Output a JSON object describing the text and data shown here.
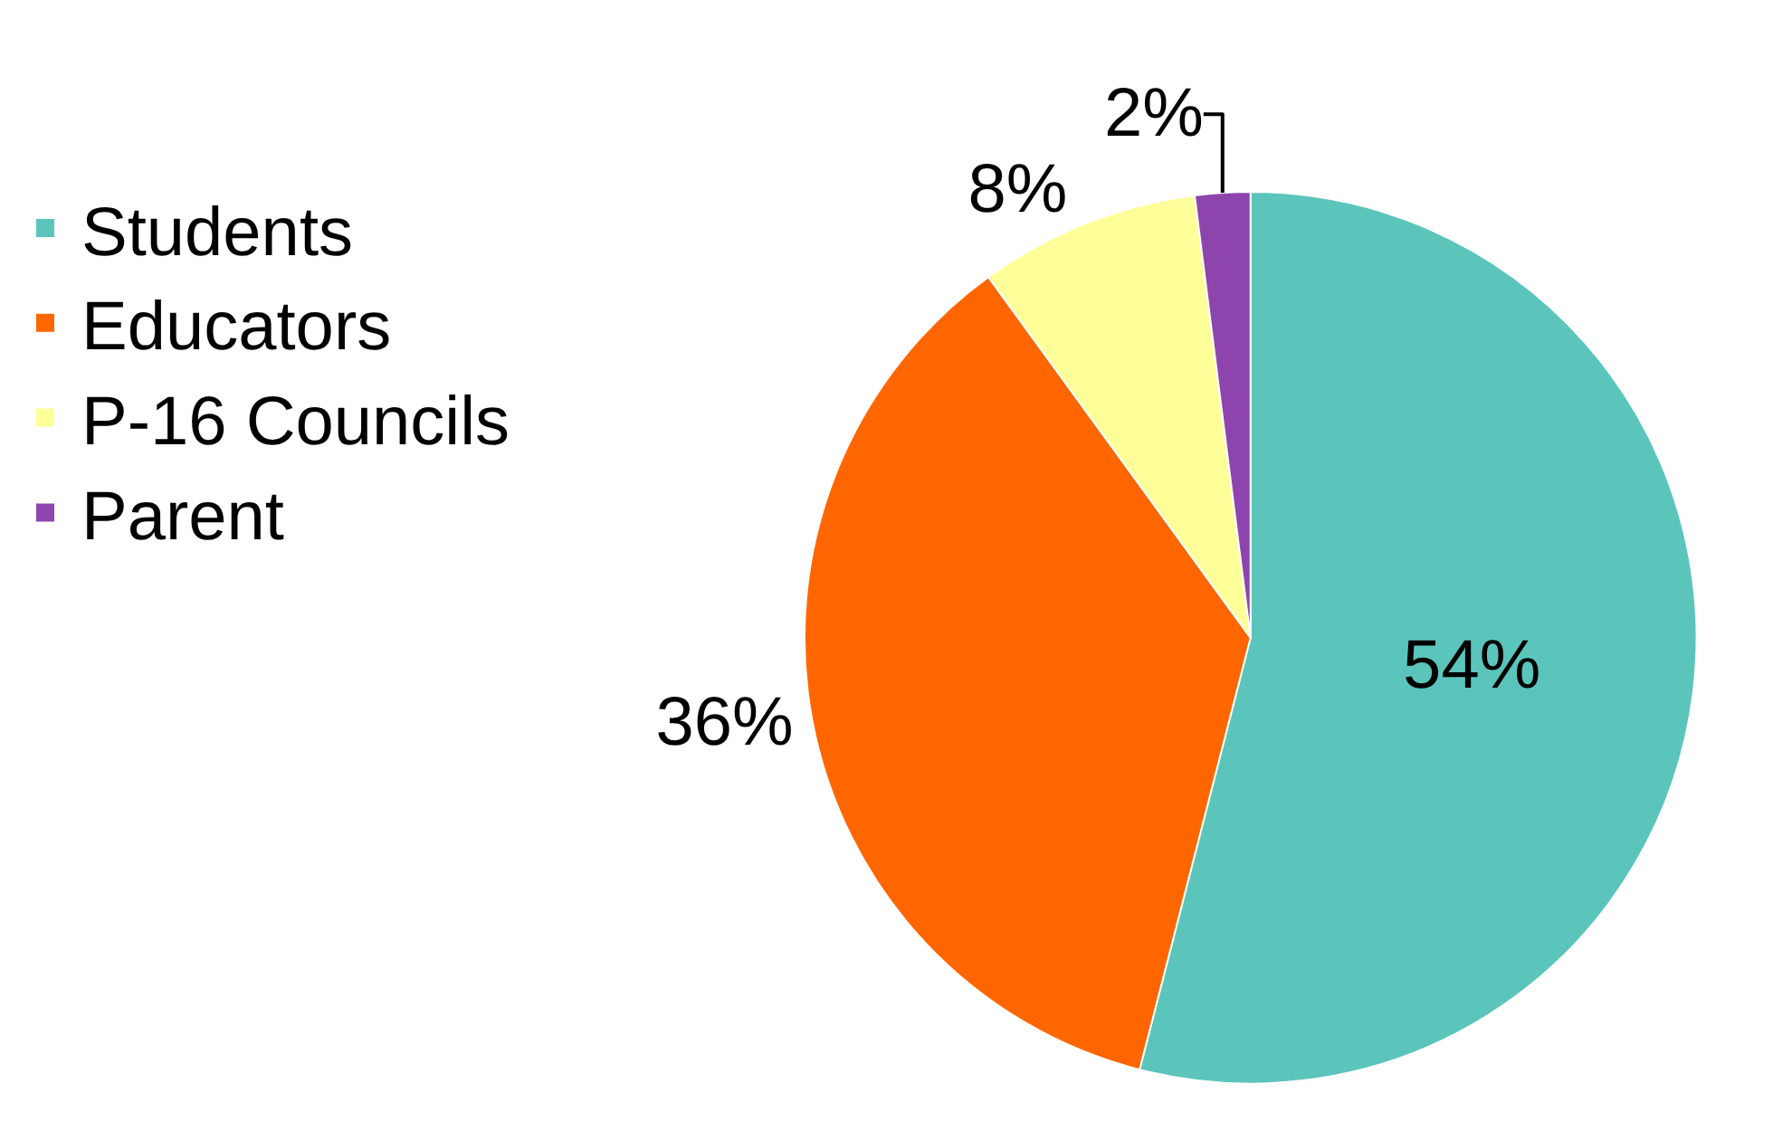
{
  "chart_data": {
    "type": "pie",
    "categories": [
      "Students",
      "Educators",
      "P-16 Councils",
      "Parent"
    ],
    "values": [
      54,
      36,
      8,
      2
    ],
    "colors": [
      "#5bc5bc",
      "#ff6600",
      "#ffff99",
      "#8e44ad"
    ],
    "value_labels": [
      "54%",
      "36%",
      "8%",
      "2%"
    ],
    "legend": "left"
  }
}
